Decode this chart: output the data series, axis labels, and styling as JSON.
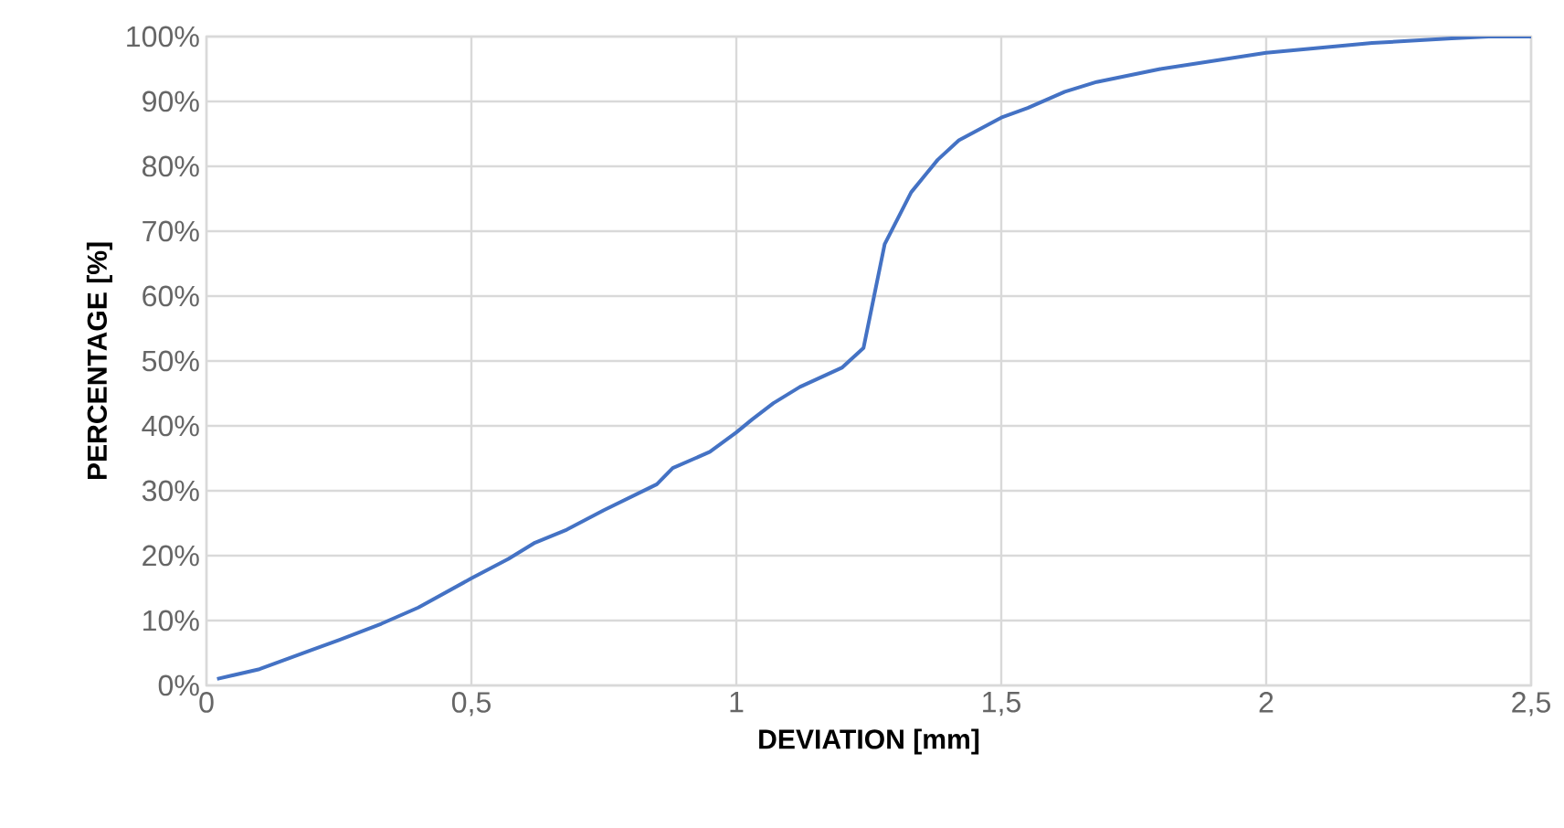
{
  "chart_data": {
    "type": "line",
    "xlabel": "DEVIATION [mm]",
    "ylabel": "PERCENTAGE [%]",
    "x": [
      0.02,
      0.1,
      0.2,
      0.25,
      0.33,
      0.4,
      0.5,
      0.57,
      0.62,
      0.68,
      0.75,
      0.85,
      0.88,
      0.95,
      1.0,
      1.03,
      1.07,
      1.12,
      1.2,
      1.24,
      1.26,
      1.28,
      1.33,
      1.38,
      1.42,
      1.5,
      1.55,
      1.62,
      1.68,
      1.8,
      2.0,
      2.2,
      2.35,
      2.42,
      2.5
    ],
    "series": [
      {
        "color": "#4472c4",
        "values": [
          1,
          2.5,
          5.5,
          7,
          9.5,
          12,
          16.5,
          19.5,
          22,
          24,
          27,
          31,
          33.5,
          36,
          39,
          41,
          43.5,
          46,
          49,
          52,
          60,
          68,
          76,
          81,
          84,
          87.5,
          89,
          91.5,
          93,
          95,
          97.5,
          99,
          99.7,
          100,
          100
        ]
      }
    ],
    "xlim": [
      0,
      2.5
    ],
    "ylim": [
      0,
      100
    ],
    "xticks": [
      0,
      {
        "value": 0.5,
        "label": "0,5"
      },
      1,
      {
        "value": 1.5,
        "label": "1,5"
      },
      2,
      {
        "value": 2.5,
        "label": "2,5"
      }
    ],
    "yticks": [
      {
        "value": 0,
        "label": "0%"
      },
      {
        "value": 10,
        "label": "10%"
      },
      {
        "value": 20,
        "label": "20%"
      },
      {
        "value": 30,
        "label": "30%"
      },
      {
        "value": 40,
        "label": "40%"
      },
      {
        "value": 50,
        "label": "50%"
      },
      {
        "value": 60,
        "label": "60%"
      },
      {
        "value": 70,
        "label": "70%"
      },
      {
        "value": 80,
        "label": "80%"
      },
      {
        "value": 90,
        "label": "90%"
      },
      {
        "value": 100,
        "label": "100%"
      }
    ],
    "grid": true,
    "marker": "none",
    "line_style": "solid"
  }
}
